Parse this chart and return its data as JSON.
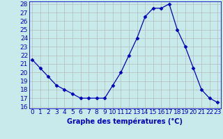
{
  "hours": [
    0,
    1,
    2,
    3,
    4,
    5,
    6,
    7,
    8,
    9,
    10,
    11,
    12,
    13,
    14,
    15,
    16,
    17,
    18,
    19,
    20,
    21,
    22,
    23
  ],
  "temps": [
    21.5,
    20.5,
    19.5,
    18.5,
    18.0,
    17.5,
    17.0,
    17.0,
    17.0,
    17.0,
    18.5,
    20.0,
    22.0,
    24.0,
    26.5,
    27.5,
    27.5,
    28.0,
    25.0,
    23.0,
    20.5,
    18.0,
    17.0,
    16.5
  ],
  "xlabel": "Graphe des températures (°C)",
  "ylim_min": 16,
  "ylim_max": 28,
  "xlim_min": 0,
  "xlim_max": 23,
  "yticks": [
    16,
    17,
    18,
    19,
    20,
    21,
    22,
    23,
    24,
    25,
    26,
    27,
    28
  ],
  "xticks": [
    0,
    1,
    2,
    3,
    4,
    5,
    6,
    7,
    8,
    9,
    10,
    11,
    12,
    13,
    14,
    15,
    16,
    17,
    18,
    19,
    20,
    21,
    22,
    23
  ],
  "line_color": "#0000bb",
  "marker": "D",
  "marker_size": 2.5,
  "bg_color": "#c8eaea",
  "grid_color": "#b0b0b0",
  "label_color": "#0000bb",
  "xlabel_fontsize": 7,
  "tick_fontsize": 6.5
}
